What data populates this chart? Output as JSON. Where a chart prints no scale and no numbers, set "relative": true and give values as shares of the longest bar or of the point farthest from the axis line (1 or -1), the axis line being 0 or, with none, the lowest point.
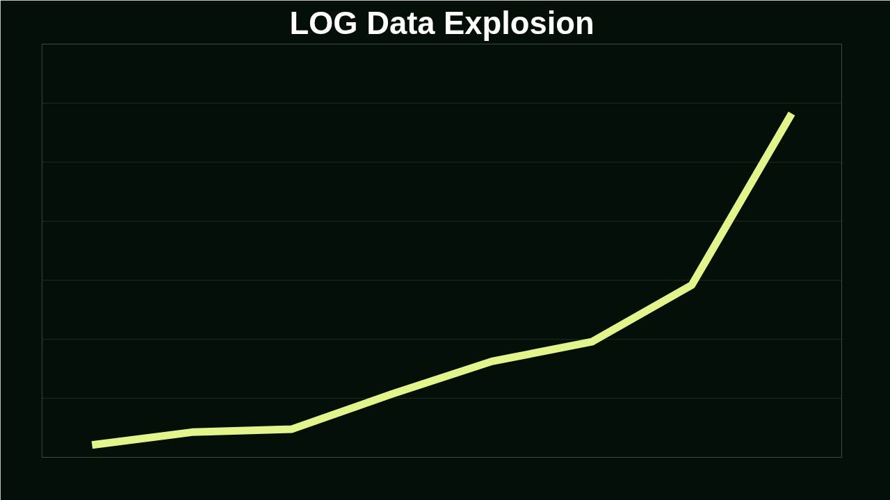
{
  "chart_data": {
    "type": "line",
    "title": "LOG Data Explosion",
    "relative": true,
    "categories": [
      null,
      null,
      null,
      null,
      null,
      null,
      null,
      null
    ],
    "series": [
      {
        "color": "#e2f58c",
        "values": [
          0.036,
          0.073,
          0.082,
          0.184,
          0.279,
          0.336,
          0.501,
          1
        ]
      }
    ],
    "grid": "y",
    "marker": "none",
    "line_style": "solid"
  }
}
